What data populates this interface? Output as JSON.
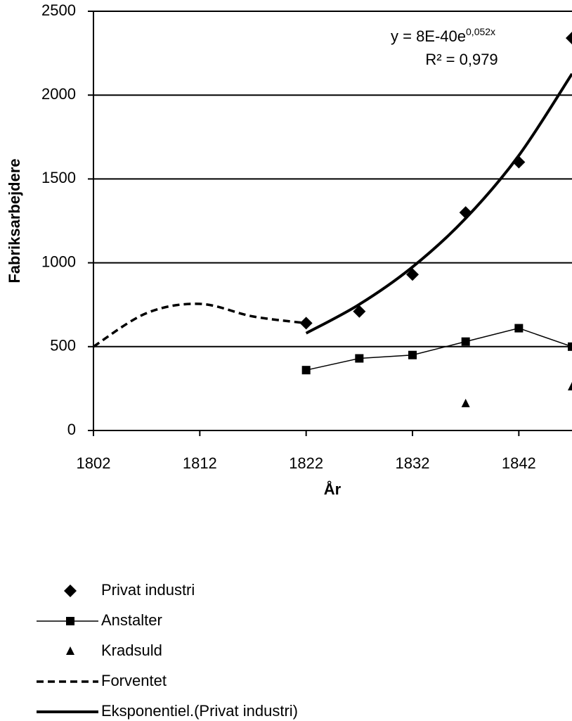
{
  "chart_data": {
    "type": "line",
    "xlabel": "År",
    "ylabel": "Fabriksarbejdere",
    "xlim": [
      1802,
      1847
    ],
    "xticks": [
      1802,
      1812,
      1822,
      1832,
      1842
    ],
    "ylim": [
      0,
      2500
    ],
    "yticks": [
      0,
      500,
      1000,
      1500,
      2000,
      2500
    ],
    "grid": true,
    "annotation": {
      "equation": "y = 8E-40e",
      "exponent": "0,052x",
      "r2": "R² = 0,979"
    },
    "series": [
      {
        "name": "Privat industri",
        "color": "#000000",
        "marker": "diamond",
        "line": "none",
        "x": [
          1822,
          1827,
          1832,
          1837,
          1842,
          1847
        ],
        "values": [
          640,
          710,
          930,
          1300,
          1600,
          2340
        ]
      },
      {
        "name": "Anstalter",
        "color": "#000000",
        "marker": "square",
        "line": "thin",
        "x": [
          1822,
          1827,
          1832,
          1837,
          1842,
          1847
        ],
        "values": [
          360,
          430,
          450,
          530,
          610,
          500
        ]
      },
      {
        "name": "Kradsuld",
        "color": "#000000",
        "marker": "triangle",
        "line": "none",
        "x": [
          1837,
          1847
        ],
        "values": [
          160,
          260
        ]
      },
      {
        "name": "Forventet",
        "color": "#000000",
        "marker": null,
        "line": "dashed",
        "smooth": true,
        "x": [
          1802,
          1807,
          1812,
          1817,
          1822
        ],
        "values": [
          500,
          700,
          755,
          680,
          640
        ]
      },
      {
        "name": "Eksponentiel.(Privat industri)",
        "color": "#000000",
        "marker": null,
        "line": "thick",
        "smooth": true,
        "x": [
          1822,
          1827,
          1832,
          1837,
          1842,
          1847
        ],
        "values": [
          580,
          752,
          975,
          1265,
          1640,
          2127
        ]
      }
    ]
  }
}
